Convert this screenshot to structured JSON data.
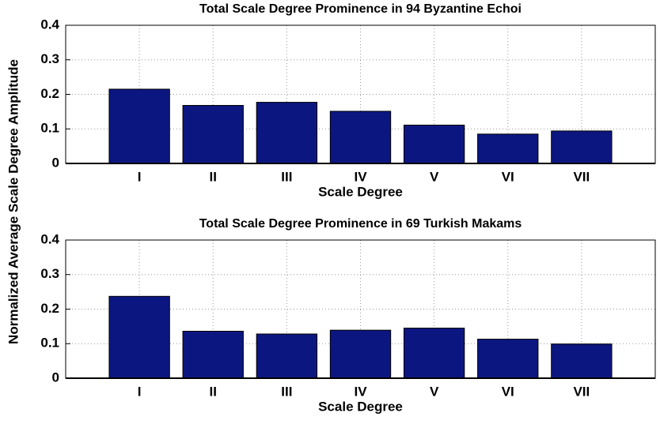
{
  "chart_data": [
    {
      "type": "bar",
      "title": "Total Scale Degree Prominence in 94 Byzantine Echoi",
      "xlabel": "Scale Degree",
      "ylabel": "Normalized Average Scale Degree Amplitude",
      "categories": [
        "I",
        "II",
        "III",
        "IV",
        "V",
        "VI",
        "VII"
      ],
      "values": [
        0.215,
        0.168,
        0.177,
        0.151,
        0.111,
        0.085,
        0.094
      ],
      "color": "#0c1680",
      "ylim": [
        0,
        0.4
      ],
      "yticks": [
        0,
        0.1,
        0.2,
        0.3,
        0.4
      ],
      "grid": true
    },
    {
      "type": "bar",
      "title": "Total Scale Degree Prominence in 69 Turkish Makams",
      "xlabel": "Scale Degree",
      "categories": [
        "I",
        "II",
        "III",
        "IV",
        "V",
        "VI",
        "VII"
      ],
      "values": [
        0.237,
        0.136,
        0.128,
        0.139,
        0.145,
        0.113,
        0.099
      ],
      "color": "#0c1680",
      "ylim": [
        0,
        0.4
      ],
      "yticks": [
        0,
        0.1,
        0.2,
        0.3,
        0.4
      ],
      "grid": true
    }
  ]
}
